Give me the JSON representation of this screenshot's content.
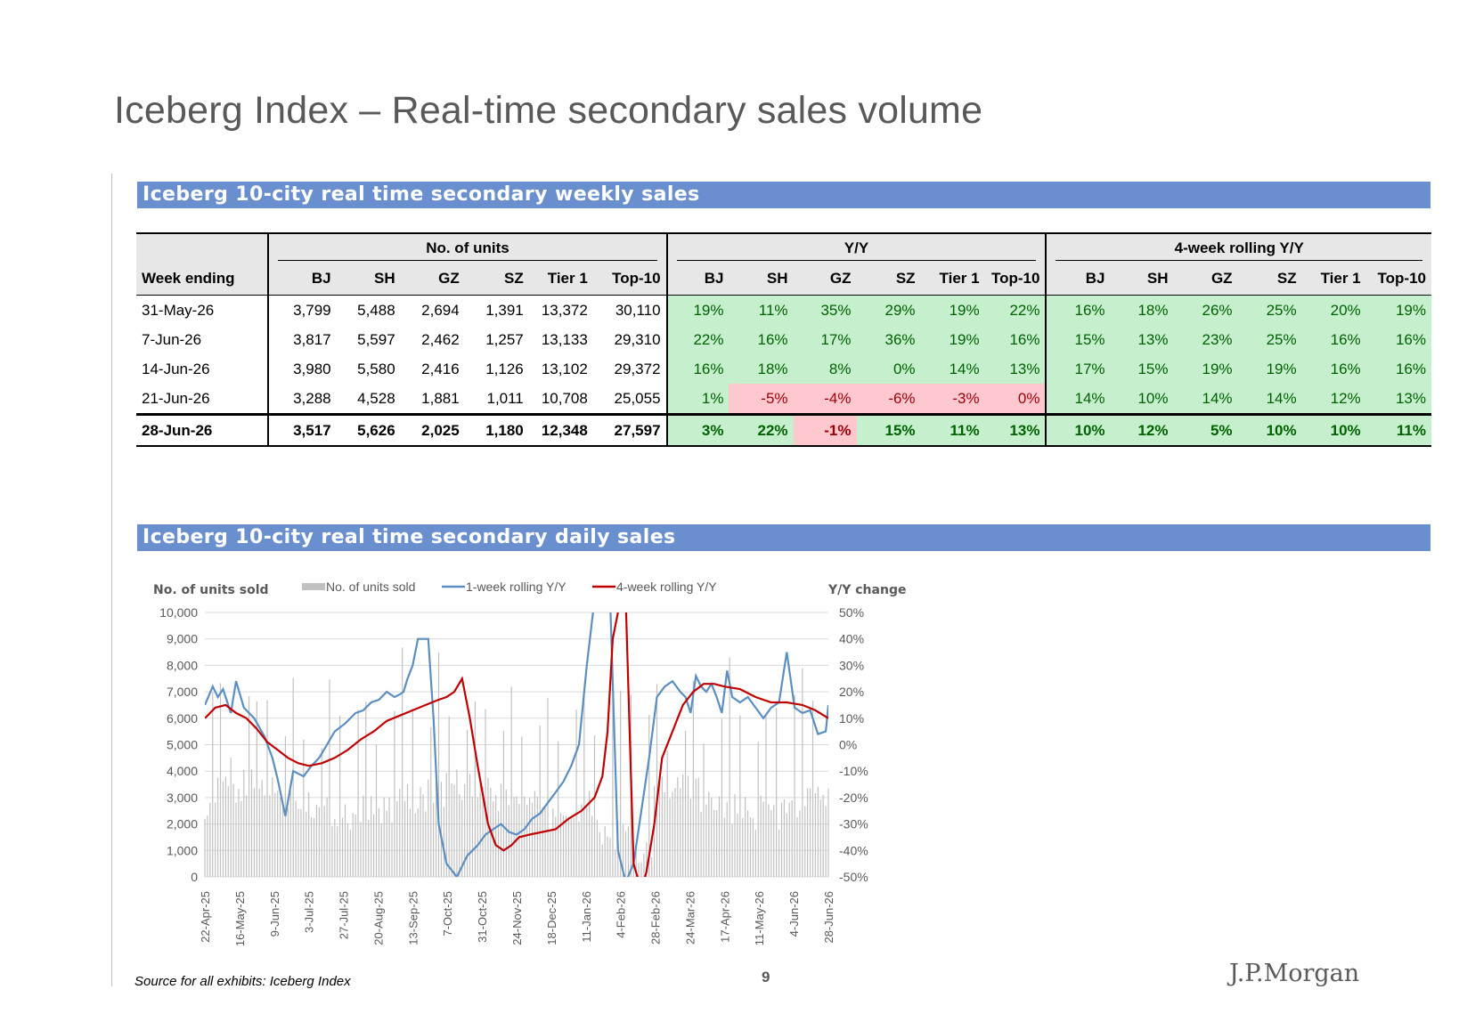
{
  "page": {
    "title": "Iceberg Index – Real-time secondary sales volume",
    "source": "Source for all exhibits: Iceberg Index",
    "page_number": "9",
    "logo": "J.P.Morgan"
  },
  "weekly": {
    "banner": "Iceberg 10-city real time secondary weekly sales",
    "groups": [
      "No. of units",
      "Y/Y",
      "4-week rolling Y/Y"
    ],
    "first_col": "Week ending",
    "cols": [
      "BJ",
      "SH",
      "GZ",
      "SZ",
      "Tier 1",
      "Top-10"
    ],
    "rows": [
      {
        "week": "31-May-26",
        "units": [
          "3,799",
          "5,488",
          "2,694",
          "1,391",
          "13,372",
          "30,110"
        ],
        "yoy": [
          "19%",
          "11%",
          "35%",
          "29%",
          "19%",
          "22%"
        ],
        "roll": [
          "16%",
          "18%",
          "26%",
          "25%",
          "20%",
          "19%"
        ]
      },
      {
        "week": "7-Jun-26",
        "units": [
          "3,817",
          "5,597",
          "2,462",
          "1,257",
          "13,133",
          "29,310"
        ],
        "yoy": [
          "22%",
          "16%",
          "17%",
          "36%",
          "19%",
          "16%"
        ],
        "roll": [
          "15%",
          "13%",
          "23%",
          "25%",
          "16%",
          "16%"
        ]
      },
      {
        "week": "14-Jun-26",
        "units": [
          "3,980",
          "5,580",
          "2,416",
          "1,126",
          "13,102",
          "29,372"
        ],
        "yoy": [
          "16%",
          "18%",
          "8%",
          "0%",
          "14%",
          "13%"
        ],
        "roll": [
          "17%",
          "15%",
          "19%",
          "19%",
          "16%",
          "16%"
        ]
      },
      {
        "week": "21-Jun-26",
        "units": [
          "3,288",
          "4,528",
          "1,881",
          "1,011",
          "10,708",
          "25,055"
        ],
        "yoy": [
          "1%",
          "-5%",
          "-4%",
          "-6%",
          "-3%",
          "0%"
        ],
        "roll": [
          "14%",
          "10%",
          "14%",
          "14%",
          "12%",
          "13%"
        ]
      },
      {
        "week": "28-Jun-26",
        "units": [
          "3,517",
          "5,626",
          "2,025",
          "1,180",
          "12,348",
          "27,597"
        ],
        "yoy": [
          "3%",
          "22%",
          "-1%",
          "15%",
          "11%",
          "13%"
        ],
        "roll": [
          "10%",
          "12%",
          "5%",
          "10%",
          "10%",
          "11%"
        ]
      }
    ],
    "colors": {
      "pos_bg": "#c6efce",
      "pos_fg": "#006100",
      "neg_bg": "#ffc7ce",
      "neg_fg": "#9c0006"
    }
  },
  "daily": {
    "banner": "Iceberg 10-city real time secondary daily sales"
  },
  "chart_data": {
    "type": "bar+line",
    "left_axis_title": "No. of units sold",
    "right_axis_title": "Y/Y change",
    "left_ylim": [
      0,
      10000
    ],
    "left_ticks": [
      "0",
      "1,000",
      "2,000",
      "3,000",
      "4,000",
      "5,000",
      "6,000",
      "7,000",
      "8,000",
      "9,000",
      "10,000"
    ],
    "right_ylim": [
      -50,
      50
    ],
    "right_ticks": [
      "-50%",
      "-40%",
      "-30%",
      "-20%",
      "-10%",
      "0%",
      "10%",
      "20%",
      "30%",
      "40%",
      "50%"
    ],
    "x_ticks": [
      "22-Apr-25",
      "16-May-25",
      "9-Jun-25",
      "3-Jul-25",
      "27-Jul-25",
      "20-Aug-25",
      "13-Sep-25",
      "7-Oct-25",
      "31-Oct-25",
      "24-Nov-25",
      "18-Dec-25",
      "11-Jan-26",
      "4-Feb-26",
      "28-Feb-26",
      "24-Mar-26",
      "17-Apr-26",
      "11-May-26",
      "4-Jun-26",
      "28-Jun-26"
    ],
    "legend": [
      "No. of units sold",
      "1-week rolling Y/Y",
      "4-week rolling Y/Y"
    ],
    "grid": true,
    "colors": {
      "bars": "#c0c0c0",
      "yoy1": "#5b8ec1",
      "yoy4": "#c00000"
    },
    "series": [
      {
        "name": "1-week rolling Y/Y",
        "axis": "right",
        "x": [
          0,
          6,
          10,
          14,
          20,
          24,
          30,
          38,
          46,
          52,
          56,
          62,
          68,
          76,
          82,
          88,
          94,
          100,
          108,
          116,
          122,
          128,
          134,
          140,
          146,
          150,
          153,
          156,
          160,
          164,
          168,
          172,
          176,
          180,
          186,
          194,
          202,
          210,
          216,
          222,
          228,
          234,
          240,
          246,
          252,
          258,
          264,
          270,
          276,
          282,
          288,
          294,
          300,
          306,
          312,
          318,
          324,
          330,
          336,
          342,
          348,
          354,
          360,
          366,
          370,
          374,
          378,
          382,
          386,
          390,
          394,
          398,
          402,
          406,
          412,
          418,
          424,
          430,
          436,
          442,
          448,
          454,
          460,
          466,
          472,
          478,
          480
        ],
        "y": [
          15,
          22,
          18,
          21,
          12,
          24,
          14,
          10,
          3,
          -5,
          -13,
          -27,
          -10,
          -12,
          -8,
          -5,
          0,
          5,
          8,
          12,
          13,
          16,
          17,
          20,
          18,
          19,
          20,
          25,
          30,
          40,
          40,
          40,
          10,
          -30,
          -45,
          -50,
          -42,
          -38,
          -34,
          -32,
          -30,
          -33,
          -34,
          -32,
          -28,
          -26,
          -22,
          -18,
          -14,
          -8,
          0,
          30,
          55,
          55,
          55,
          -40,
          -52,
          -45,
          -25,
          -5,
          18,
          22,
          24,
          20,
          18,
          12,
          26,
          22,
          20,
          23,
          18,
          12,
          28,
          18,
          16,
          18,
          14,
          10,
          14,
          16,
          35,
          14,
          12,
          13,
          4,
          5,
          15
        ]
      },
      {
        "name": "4-week rolling Y/Y",
        "axis": "right",
        "x": [
          0,
          8,
          16,
          24,
          32,
          40,
          48,
          56,
          64,
          72,
          80,
          90,
          100,
          110,
          120,
          130,
          140,
          150,
          160,
          170,
          180,
          186,
          192,
          198,
          204,
          210,
          218,
          224,
          230,
          236,
          242,
          250,
          260,
          270,
          280,
          290,
          300,
          306,
          310,
          314,
          320,
          324,
          330,
          336,
          340,
          346,
          352,
          360,
          368,
          376,
          384,
          392,
          400,
          412,
          424,
          436,
          448,
          460,
          470,
          480
        ],
        "y": [
          10,
          14,
          15,
          12,
          10,
          6,
          1,
          -2,
          -5,
          -7,
          -8,
          -7,
          -5,
          -2,
          2,
          5,
          9,
          11,
          13,
          15,
          17,
          18,
          20,
          25,
          10,
          -8,
          -30,
          -38,
          -40,
          -38,
          -35,
          -34,
          -33,
          -32,
          -28,
          -25,
          -20,
          -12,
          5,
          40,
          55,
          55,
          -45,
          -55,
          -48,
          -30,
          -5,
          5,
          15,
          20,
          23,
          23,
          22,
          21,
          18,
          16,
          16,
          15,
          13,
          10
        ]
      }
    ]
  }
}
